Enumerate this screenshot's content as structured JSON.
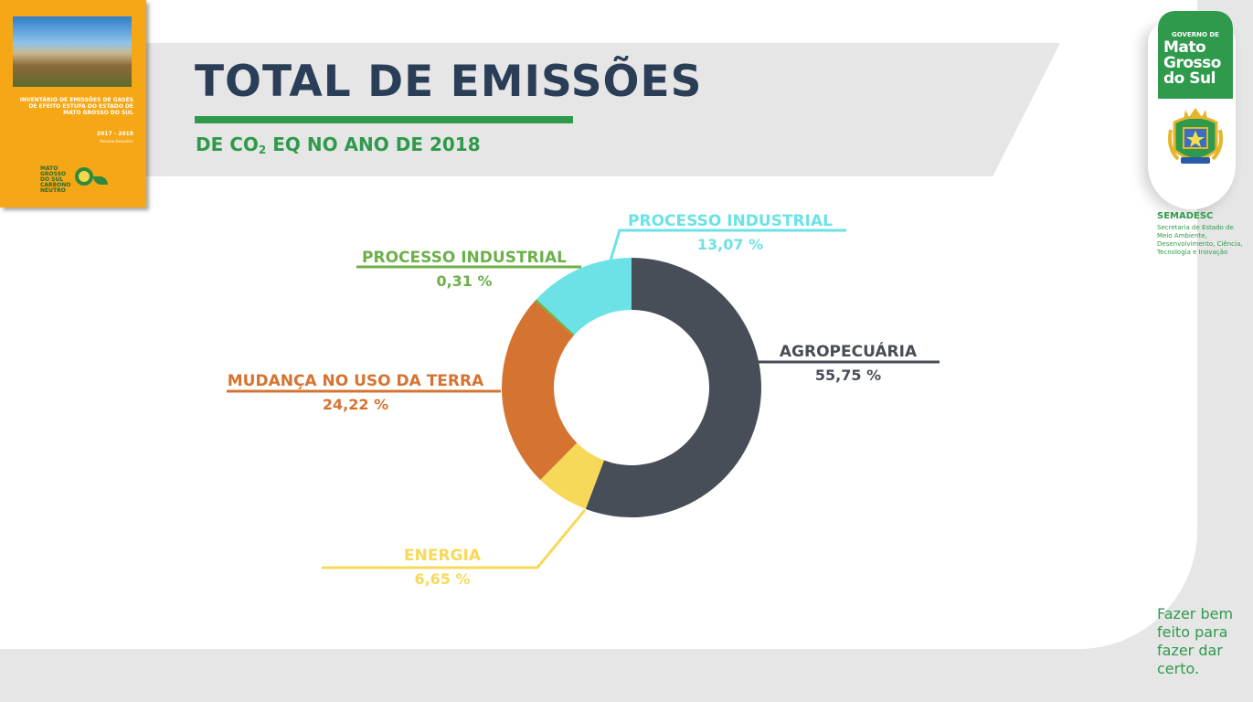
{
  "title": "TOTAL DE EMISSÕES",
  "subtitle": {
    "prefix": "DE CO",
    "sub": "2",
    "suffix": " EQ NO ANO DE 2018"
  },
  "cover": {
    "heading": "INVENTÁRIO DE EMISSÕES DE GASES DE EFEITO ESTUFA DO ESTADO DE MATO GROSSO DO SUL",
    "years": "2017 - 2018",
    "note": "Resumo Executivo",
    "logo_text": "MATO GROSSO DO SUL CARBONO NEUTRO"
  },
  "government": {
    "small": "GOVERNO DE",
    "big": "Mato Grosso do Sul",
    "agency": "SEMADESC",
    "agency_desc": "Secretaria de Estado de Meio Ambiente, Desenvolvimento, Ciência, Tecnologia e Inovação",
    "slogan": "Fazer bem feito para fazer dar certo."
  },
  "colors": {
    "agropecuaria": "#474e57",
    "energia": "#f7d95a",
    "mudanca": "#d57431",
    "processo_small": "#6db04a",
    "processo_large": "#6de2e6",
    "title": "#2b3e57",
    "accent": "#2f9a4c"
  },
  "chart_data": {
    "type": "pie",
    "style": "donut",
    "title": "TOTAL DE EMISSÕES",
    "subtitle": "DE CO2 EQ NO ANO DE 2018",
    "slices": [
      {
        "name": "AGROPECUÁRIA",
        "label": "55,75 %",
        "value": 55.75,
        "color": "#474e57"
      },
      {
        "name": "ENERGIA",
        "label": "6,65 %",
        "value": 6.65,
        "color": "#f7d95a"
      },
      {
        "name": "MUDANÇA NO USO DA TERRA",
        "label": "24,22 %",
        "value": 24.22,
        "color": "#d57431"
      },
      {
        "name": "PROCESSO INDUSTRIAL",
        "label": "0,31 %",
        "value": 0.31,
        "color": "#6db04a"
      },
      {
        "name": "PROCESSO INDUSTRIAL",
        "label": "13,07 %",
        "value": 13.07,
        "color": "#6de2e6"
      }
    ],
    "legend": "none (direct labels)"
  }
}
